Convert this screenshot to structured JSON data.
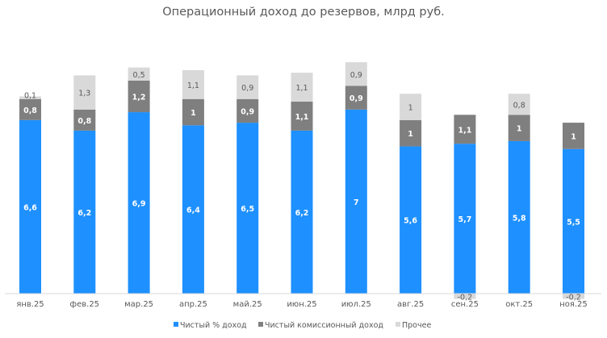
{
  "chart_data": {
    "type": "bar",
    "stacked": true,
    "title": "Операционный доход до резервов, млрд руб.",
    "xlabel": "",
    "ylabel": "",
    "categories": [
      "янв.25",
      "фев.25",
      "мар.25",
      "апр.25",
      "май.25",
      "июн.25",
      "июл.25",
      "авг.25",
      "сен.25",
      "окт.25",
      "ноя.25"
    ],
    "series": [
      {
        "name": "Чистый % доход",
        "color": "#1E90FF",
        "label_color": "#FFFFFF",
        "values": [
          6.6,
          6.2,
          6.9,
          6.4,
          6.5,
          6.2,
          7,
          5.6,
          5.7,
          5.8,
          5.5
        ]
      },
      {
        "name": "Чистый комиссионный доход",
        "color": "#7F7F7F",
        "label_color": "#FFFFFF",
        "values": [
          0.8,
          0.8,
          1.2,
          1,
          0.9,
          1.1,
          0.9,
          1,
          1.1,
          1,
          1
        ]
      },
      {
        "name": "Прочее",
        "color": "#D9D9D9",
        "label_color": "#595959",
        "values": [
          0.1,
          1.3,
          0.5,
          1.1,
          0.9,
          1.1,
          0.9,
          1,
          -0.2,
          0.8,
          -0.2
        ]
      }
    ],
    "ylim": [
      -0.3,
      9.5
    ],
    "grid": false,
    "legend": "bottom"
  }
}
